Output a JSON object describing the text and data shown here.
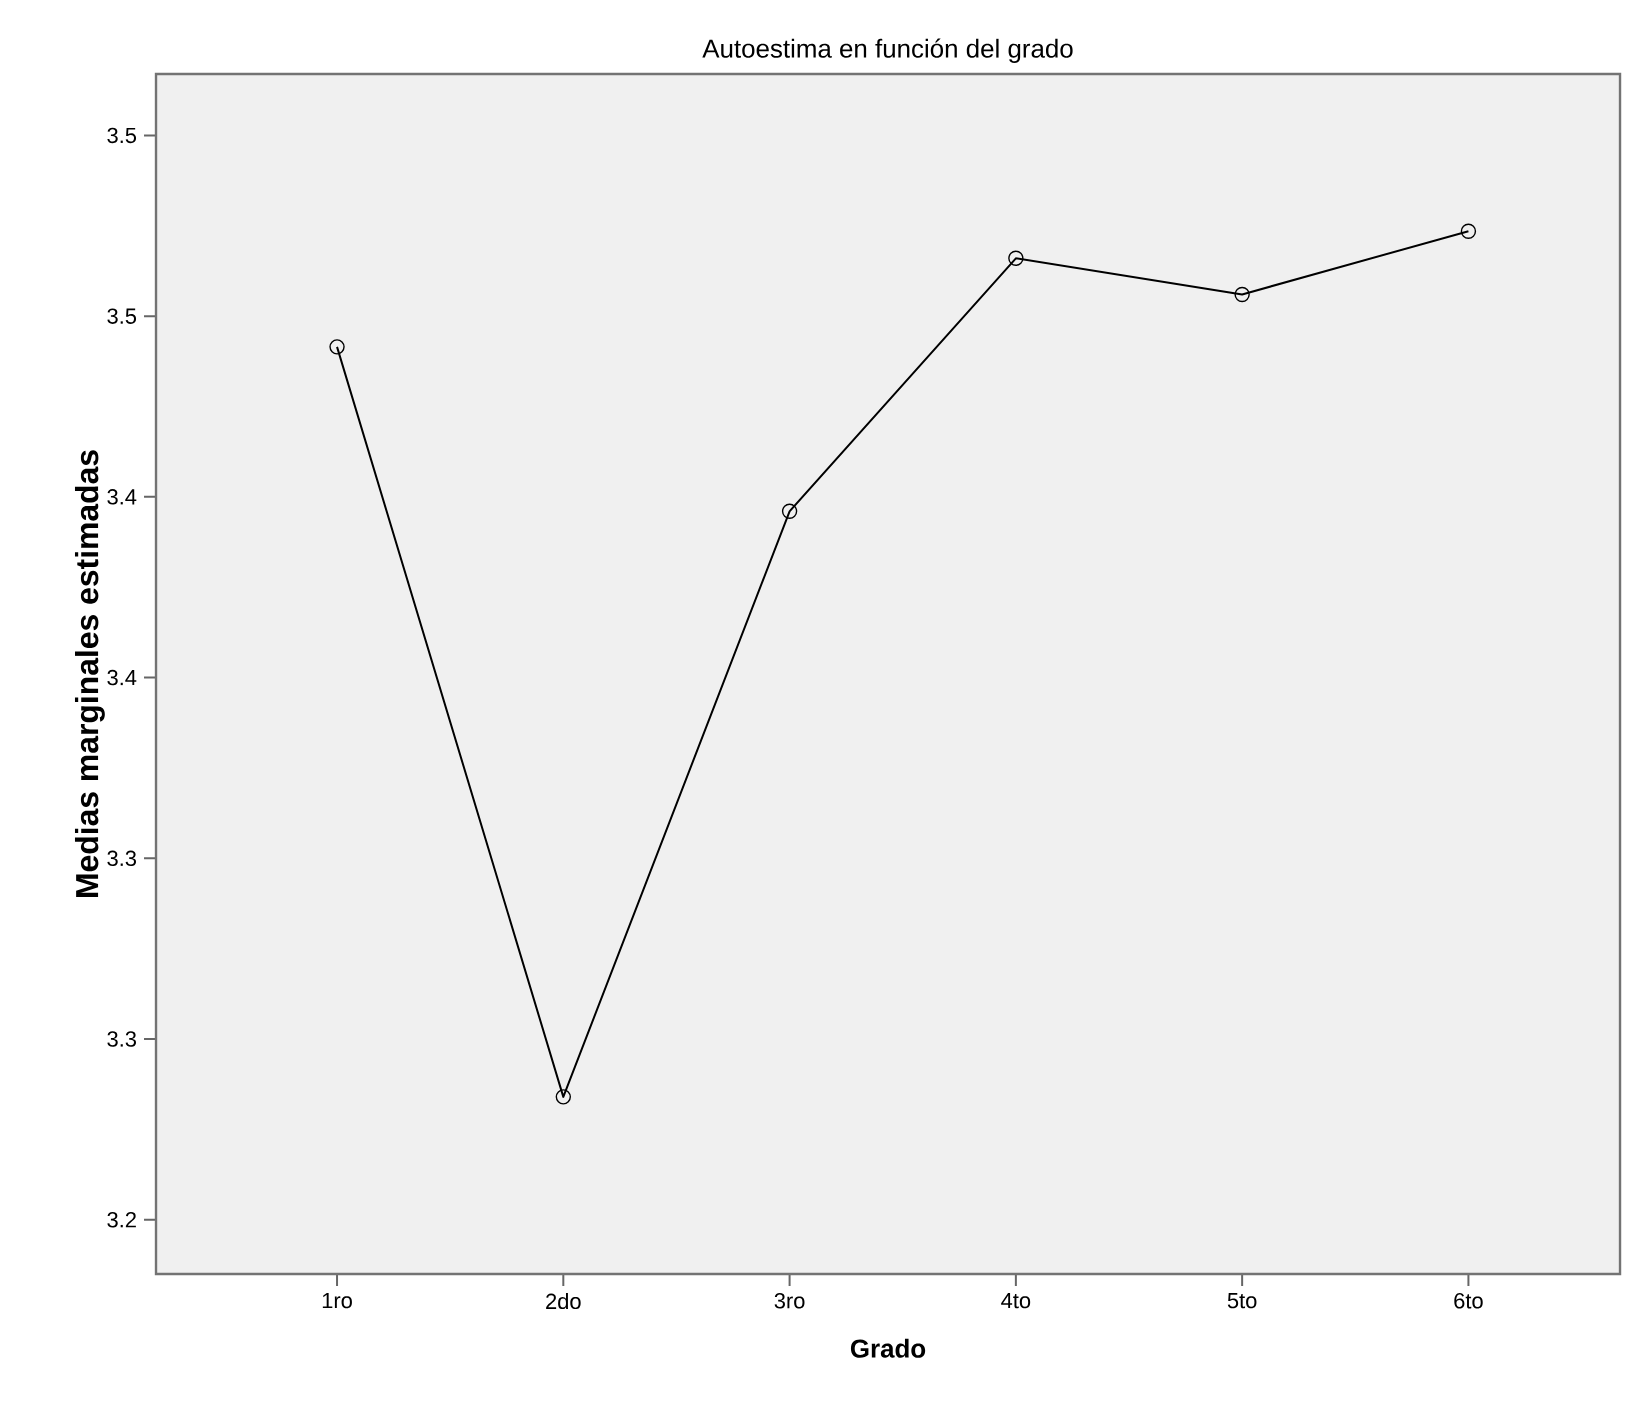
{
  "chart_data": {
    "type": "line",
    "title": "Autoestima en función del grado",
    "xlabel": "Grado",
    "ylabel": "Medias marginales estimadas",
    "categories": [
      "1ro",
      "2do",
      "3ro",
      "4to",
      "5to",
      "6to"
    ],
    "series": [
      {
        "color": "#000000",
        "values": [
          3.4915,
          3.284,
          3.446,
          3.516,
          3.506,
          3.5235
        ]
      }
    ],
    "ylim": [
      3.235,
      3.567
    ],
    "yticks": [
      {
        "value": 3.25,
        "label": "3.2"
      },
      {
        "value": 3.3,
        "label": "3.3"
      },
      {
        "value": 3.35,
        "label": "3.3"
      },
      {
        "value": 3.4,
        "label": "3.4"
      },
      {
        "value": 3.45,
        "label": "3.4"
      },
      {
        "value": 3.5,
        "label": "3.5"
      },
      {
        "value": 3.55,
        "label": "3.5"
      }
    ],
    "marker": "circle",
    "line_style": "solid",
    "grid": false
  }
}
